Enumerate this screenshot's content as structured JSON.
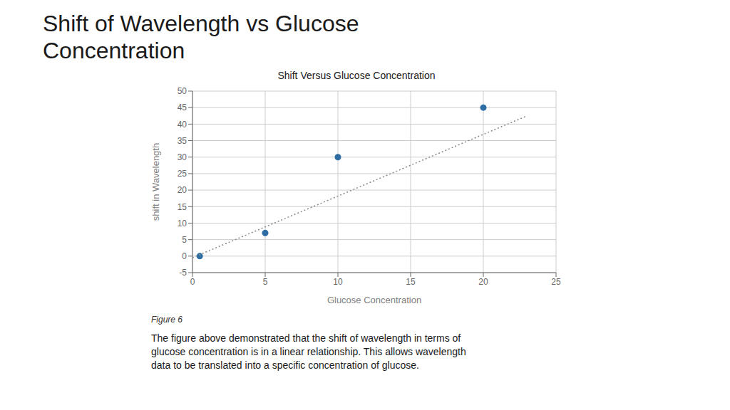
{
  "chart_data": {
    "type": "scatter",
    "title": "Shift Versus Glucose Concentration",
    "x_label": "Glucose Concentration",
    "y_label": "shift in Wavelength",
    "annotations": [
      "Shift of Wavelength vs Glucose",
      "Concentration",
      "Figure 6",
      "The figure above demonstrated that the shift of wavelength in terms of\nglucose concentration is in a linear relationship. This allows wavelength\ndata to be translated into a specific concentration of glucose."
    ],
    "series": [
      {
        "type": "scatter",
        "color": "#2e6da4",
        "marker": "circle",
        "x": [
          0.5,
          5,
          10,
          20
        ],
        "values": [
          0,
          7,
          30,
          45
        ]
      },
      {
        "type": "line",
        "color": "#888888",
        "line_style": "dotted",
        "x": [
          0,
          23
        ],
        "values": [
          -0.5,
          42.5
        ]
      }
    ],
    "xlim": [
      0,
      25
    ],
    "ylim": [
      -5,
      50
    ],
    "xticks": [
      0,
      5,
      10,
      15,
      20,
      25
    ],
    "yticks": [
      -5,
      0,
      5,
      10,
      15,
      20,
      25,
      30,
      35,
      40,
      45,
      50
    ],
    "grid": true
  }
}
